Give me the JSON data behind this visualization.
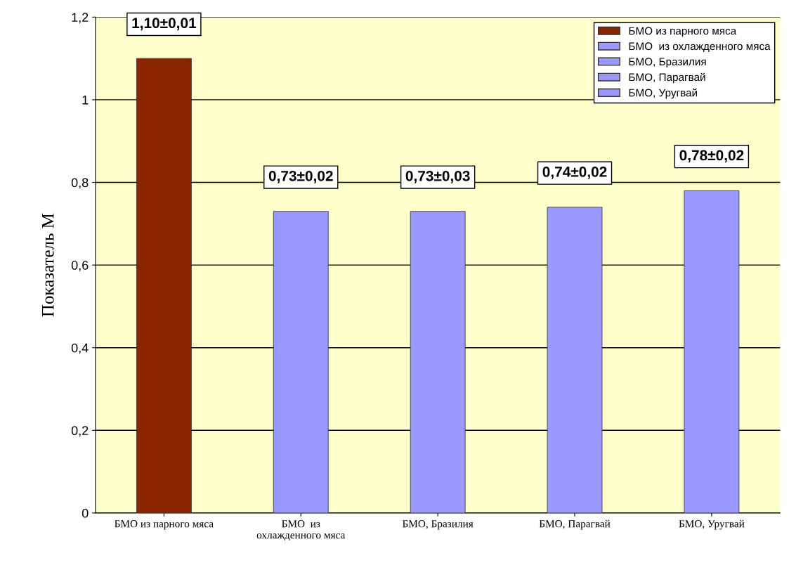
{
  "chart_data": {
    "type": "bar",
    "ylabel": "Показатель М",
    "categories": [
      "БМО из парного мяса",
      "БМО  из\nохлажденного мяса",
      "БМО, Бразилия",
      "БМО, Парагвай",
      "БМО, Уругвай"
    ],
    "series": [
      {
        "name": "БМО из парного мяса",
        "color": "#8b2500",
        "values": [
          1.1,
          null,
          null,
          null,
          null
        ],
        "value_labels": [
          "1,10±0,01",
          null,
          null,
          null,
          null
        ]
      },
      {
        "name": "БМО  из охлажденного мяса",
        "color": "#9999ff",
        "values": [
          null,
          0.73,
          null,
          null,
          null
        ],
        "value_labels": [
          null,
          "0,73±0,02",
          null,
          null,
          null
        ]
      },
      {
        "name": "БМО, Бразилия",
        "color": "#9999ff",
        "values": [
          null,
          null,
          0.73,
          null,
          null
        ],
        "value_labels": [
          null,
          null,
          "0,73±0,03",
          null,
          null
        ]
      },
      {
        "name": "БМО, Парагвай",
        "color": "#9999ff",
        "values": [
          null,
          null,
          null,
          0.74,
          null
        ],
        "value_labels": [
          null,
          null,
          null,
          "0,74±0,02",
          null
        ]
      },
      {
        "name": "БМО, Уругвай",
        "color": "#9999ff",
        "values": [
          null,
          null,
          null,
          null,
          0.78
        ],
        "value_labels": [
          null,
          null,
          null,
          null,
          "0,78±0,02"
        ]
      }
    ],
    "ylim": [
      0,
      1.2
    ],
    "yticks": [
      0,
      {
        "value": 0.2,
        "label": "0,2"
      },
      {
        "value": 0.4,
        "label": "0,4"
      },
      {
        "value": 0.6,
        "label": "0,6"
      },
      {
        "value": 0.8,
        "label": "0,8"
      },
      1,
      {
        "value": 1.2,
        "label": "1,2"
      }
    ],
    "grid": "y",
    "legend": "top right"
  }
}
